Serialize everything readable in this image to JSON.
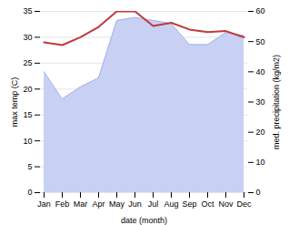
{
  "chart_data": {
    "type": "line",
    "categories": [
      "Jan",
      "Feb",
      "Mar",
      "Apr",
      "May",
      "Jun",
      "Jul",
      "Aug",
      "Sep",
      "Oct",
      "Nov",
      "Dec"
    ],
    "xlabel": "date (month)",
    "ylabel": "max temp (C)",
    "y2label": "med. precipitation (kg/m2)",
    "ylim": [
      0,
      35
    ],
    "yticks": [
      0,
      5,
      10,
      15,
      20,
      25,
      30,
      35
    ],
    "y2lim": [
      0,
      60
    ],
    "y2ticks": [
      0,
      10,
      20,
      30,
      40,
      50,
      60
    ],
    "grid": true,
    "series": [
      {
        "type": "area",
        "axis": "y2",
        "color": "#c8d0f4",
        "values": [
          40.0,
          31.0,
          35.0,
          38.0,
          57.0,
          58.0,
          57.0,
          56.0,
          49.0,
          49.0,
          53.0,
          52.0
        ]
      },
      {
        "type": "line",
        "axis": "y2",
        "color": "#aab4e8",
        "values": [
          40.0,
          31.0,
          35.0,
          38.0,
          57.0,
          58.0,
          57.0,
          56.0,
          49.0,
          49.0,
          53.0,
          52.0
        ]
      },
      {
        "type": "line",
        "color": "#c0393b",
        "values": [
          29.0,
          28.5,
          30.0,
          32.0,
          35.0,
          35.0,
          32.2,
          32.8,
          31.5,
          31.0,
          31.2,
          30.0
        ]
      }
    ]
  }
}
